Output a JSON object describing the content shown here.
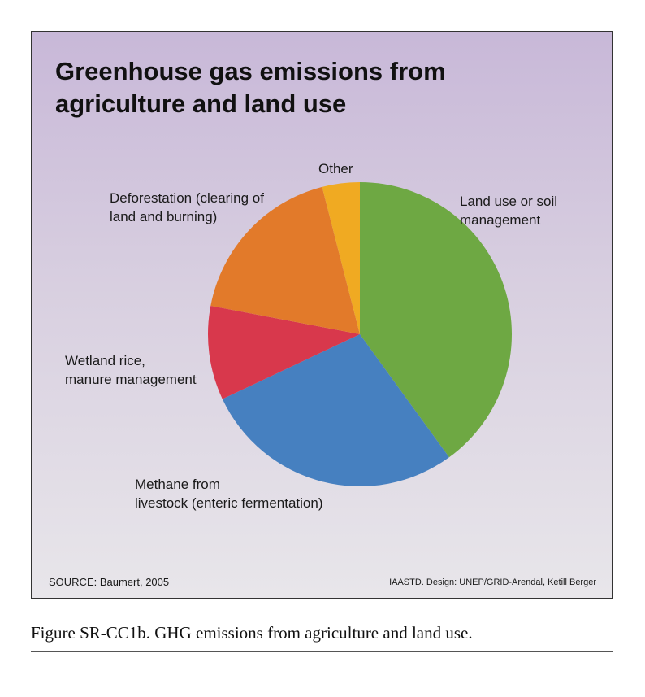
{
  "chart_data": {
    "type": "pie",
    "title": "Greenhouse gas emissions from agriculture and land use",
    "categories": [
      "Land use or soil management",
      "Methane from livestock (enteric fermentation)",
      "Wetland rice, manure management",
      "Deforestation (clearing of land and burning)",
      "Other"
    ],
    "values": [
      40,
      28,
      10,
      18,
      4
    ],
    "colors": [
      "#6ea843",
      "#4680c0",
      "#d8384c",
      "#e27a2a",
      "#f0aa22"
    ],
    "start_angle": "12 o'clock, clockwise",
    "labels": {
      "land_use": "Land use or soil\nmanagement",
      "methane": "Methane from\nlivestock (enteric fermentation)",
      "wetland": "Wetland rice,\nmanure management",
      "deforestation": "Deforestation (clearing of\nland and burning)",
      "other": "Other"
    }
  },
  "source": "SOURCE: Baumert, 2005",
  "credit": "IAASTD. Design: UNEP/GRID-Arendal, Ketill Berger",
  "caption": "Figure SR-CC1b. GHG emissions from agriculture and land use."
}
